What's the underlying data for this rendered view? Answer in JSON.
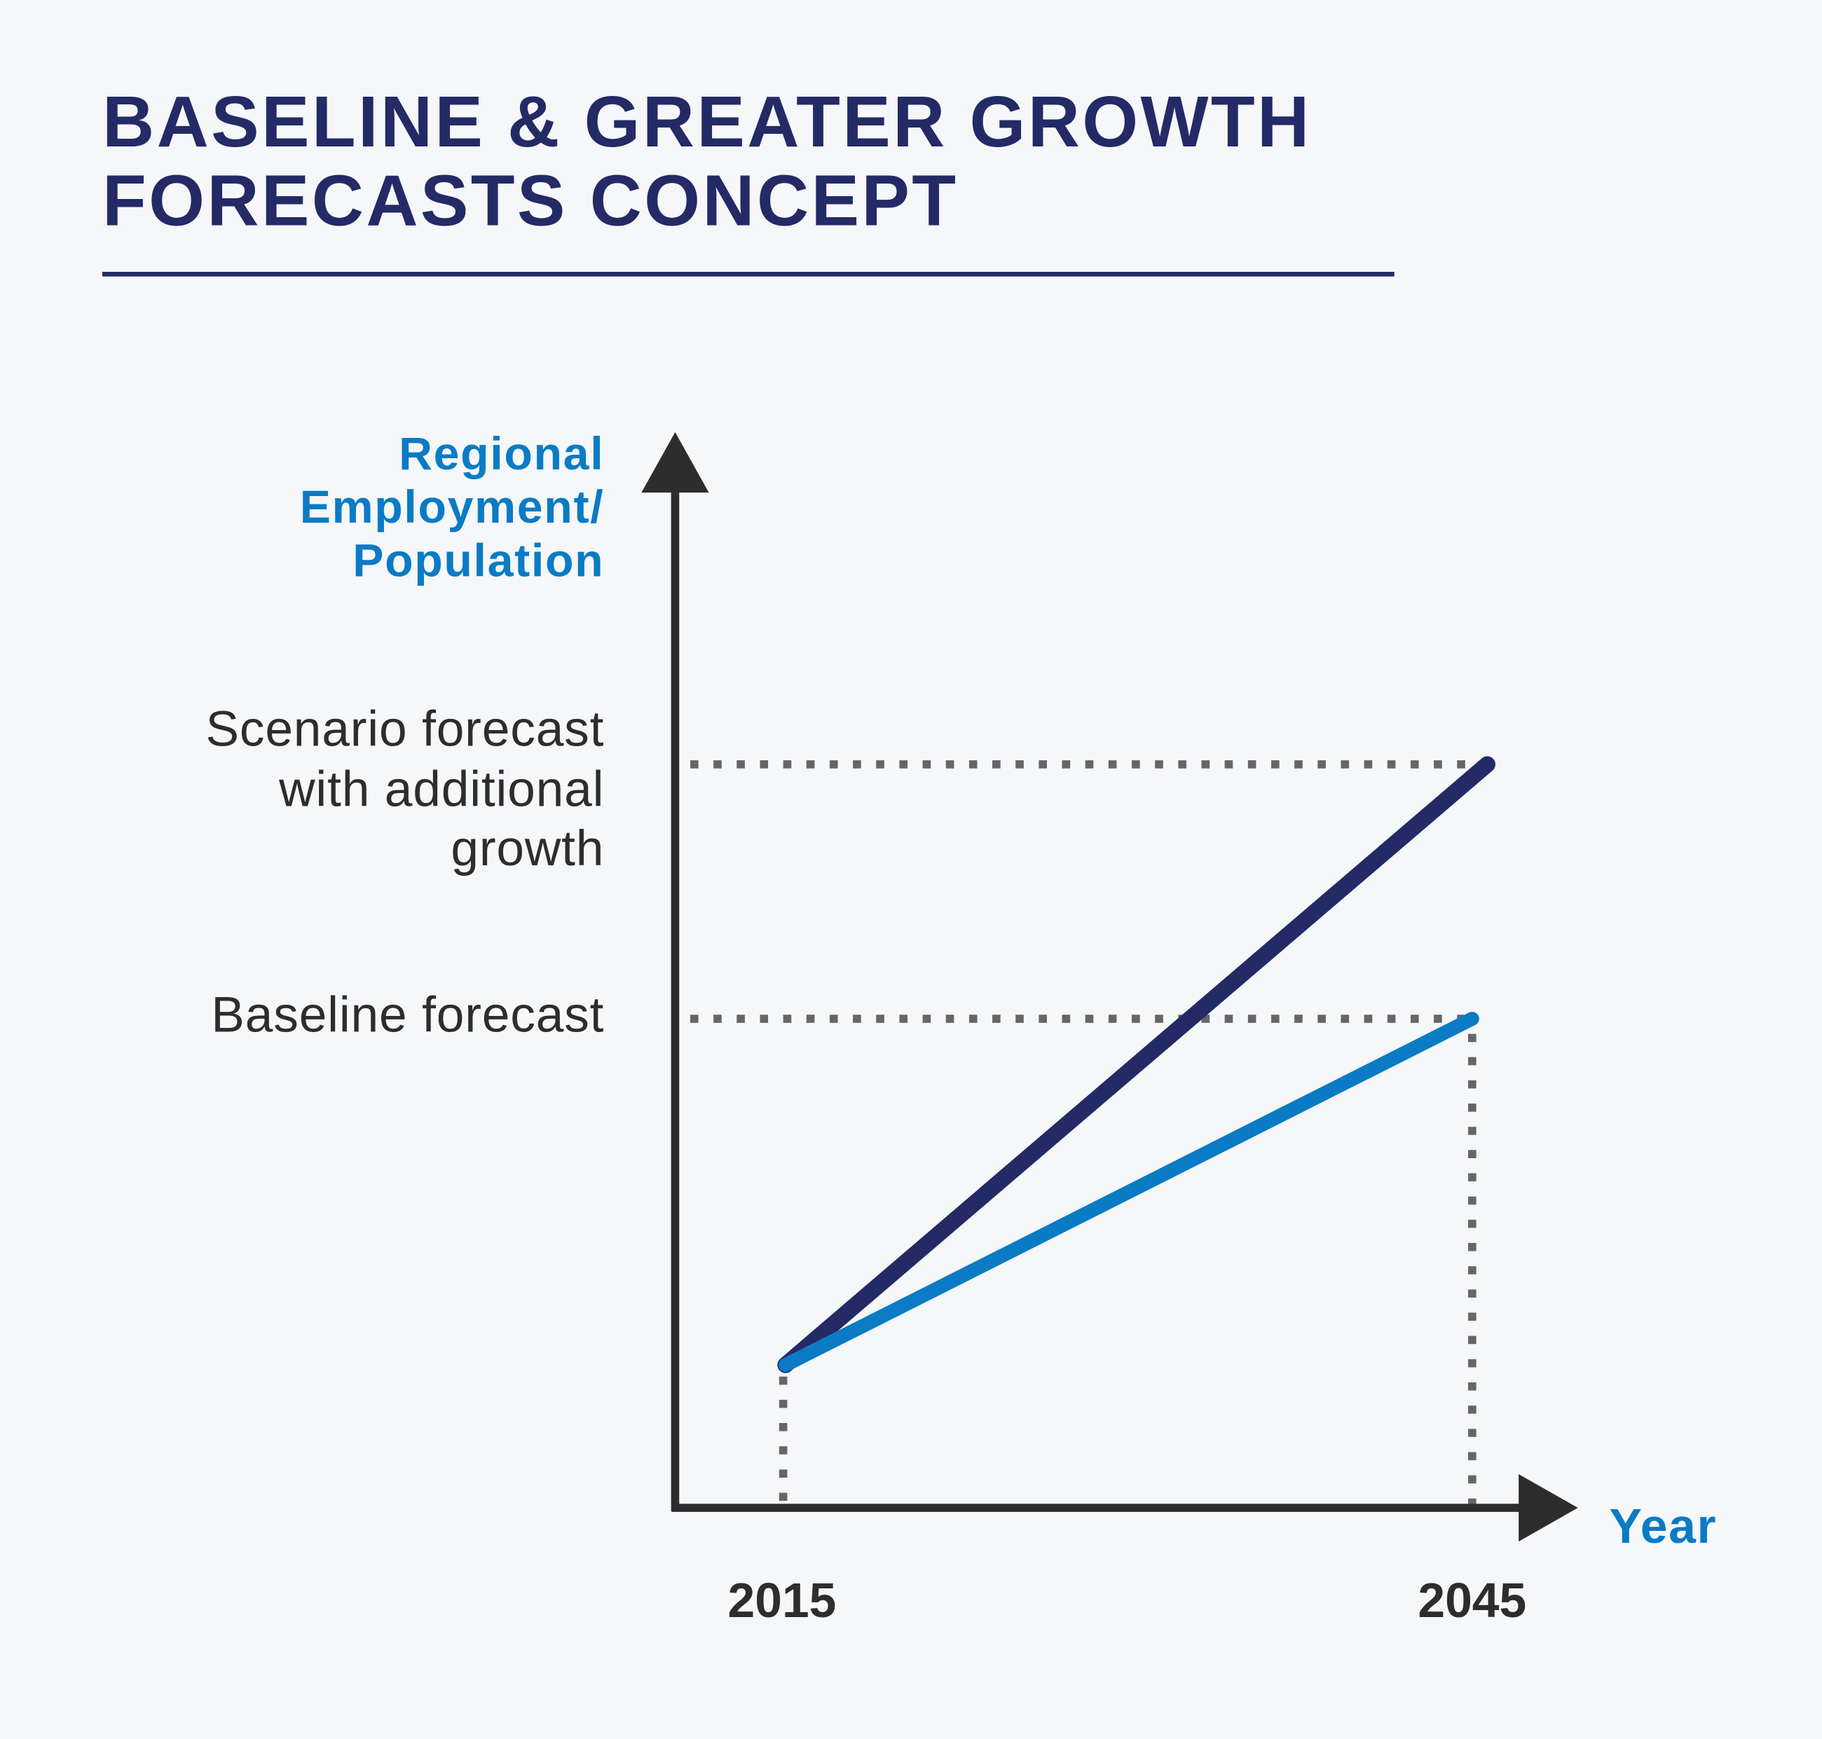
{
  "title": [
    "BASELINE & GREATER GROWTH",
    "FORECASTS CONCEPT"
  ],
  "colors": {
    "background": "#f5f7f9",
    "title": "#232a66",
    "scenario_line": "#232a66",
    "baseline_line": "#0a7bc4",
    "axis_label": "#0a7bc4",
    "axis": "#2d2d2d",
    "guide": "#666666"
  },
  "chart_data": {
    "type": "line",
    "ylabel": [
      "Regional",
      "Employment/",
      "Population"
    ],
    "xlabel": "Year",
    "x_ticks": [
      "2015",
      "2045"
    ],
    "y_ticks": [
      {
        "lines": [
          "Scenario forecast",
          "with additional",
          "growth"
        ]
      },
      {
        "lines": [
          "Baseline forecast"
        ]
      }
    ],
    "series": [
      {
        "line": "scenario",
        "x": [
          2015,
          2045
        ],
        "level": [
          "start",
          "Scenario forecast with additional growth"
        ]
      },
      {
        "line": "baseline",
        "x": [
          2015,
          2045
        ],
        "level": [
          "start",
          "Baseline forecast"
        ]
      }
    ],
    "grid": false,
    "guides": "dotted"
  }
}
